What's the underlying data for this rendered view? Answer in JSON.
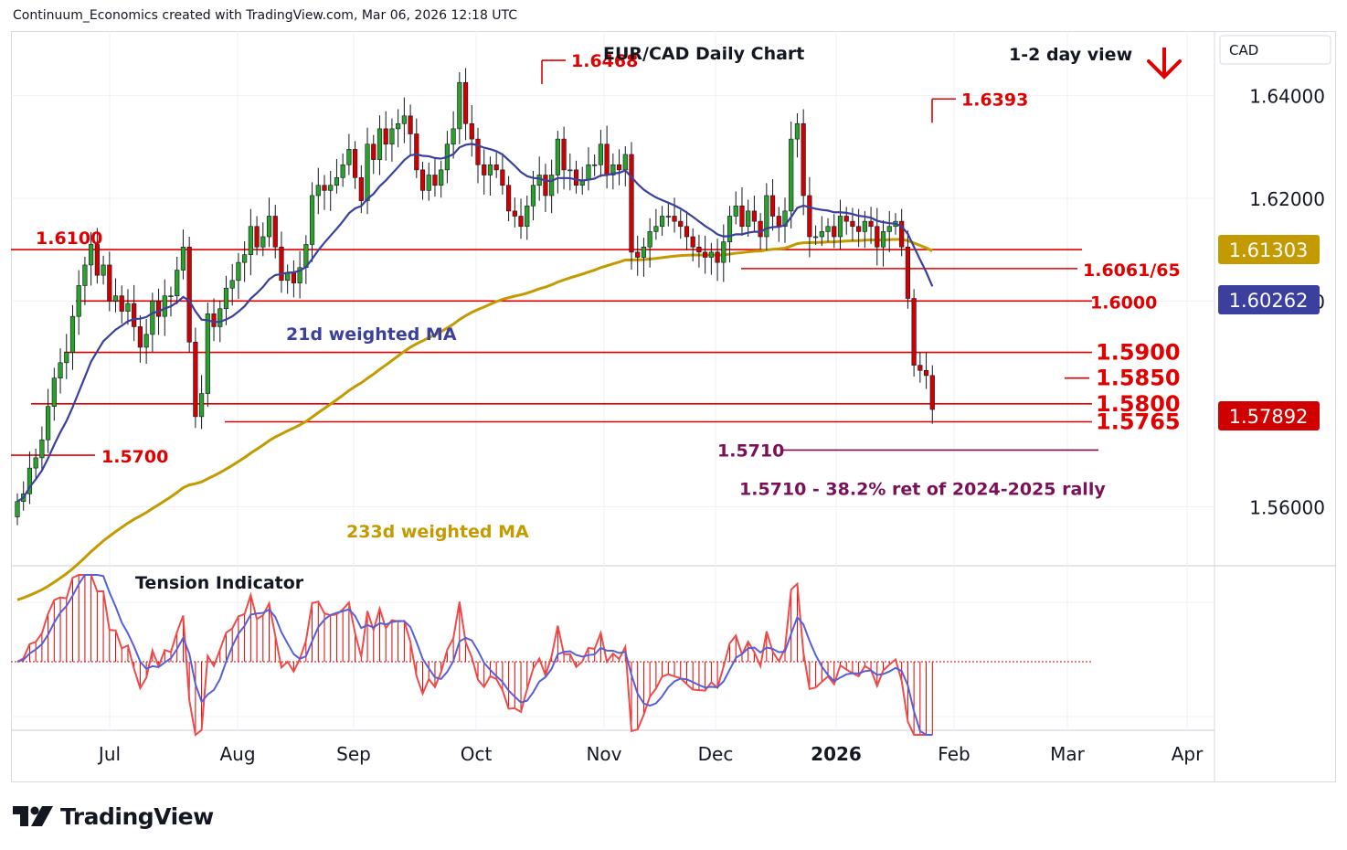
{
  "header": {
    "credit": "Continuum_Economics created with TradingView.com, Mar 06, 2026 12:18 UTC"
  },
  "branding": {
    "logo_text": "TradingView"
  },
  "colors": {
    "up": "#2ca02c",
    "down": "#d00000",
    "wick": "#131722",
    "level": "#e00000",
    "ma21": "#3b3f9e",
    "ma233": "#c39b00",
    "fib": "#7a1158",
    "tension_line": "#5560d8"
  },
  "chart_data": {
    "type": "candlestick",
    "title": "EUR/CAD Daily Chart",
    "view_label": "1-2 day view",
    "view_arrow": "down-arrow",
    "currency_label": "CAD",
    "ylim": [
      1.5485,
      1.6525
    ],
    "x_labels": [
      "Jul",
      "Aug",
      "Sep",
      "Oct",
      "Nov",
      "Dec",
      "2026",
      "Feb",
      "Mar",
      "Apr"
    ],
    "y_ticks": [
      "1.64000",
      "1.62000",
      "1.60000",
      "1.56000"
    ],
    "price_badges": [
      {
        "value": "1.61303",
        "color": "#c39b00"
      },
      {
        "value": "1.60262",
        "color": "#3b3f9e"
      },
      {
        "value": "1.57892",
        "color": "#d00000"
      }
    ],
    "levels": [
      {
        "label": "1.6100",
        "value": 1.61
      },
      {
        "label": "1.6061/65",
        "value": 1.6063
      },
      {
        "label": "1.6000",
        "value": 1.6
      },
      {
        "label": "1.5900",
        "value": 1.59
      },
      {
        "label": "1.5850",
        "value": 1.585
      },
      {
        "label": "1.5800",
        "value": 1.58
      },
      {
        "label": "1.5765",
        "value": 1.5765
      },
      {
        "label": "1.5700",
        "value": 1.57
      }
    ],
    "peaks": [
      {
        "label": "1.6468",
        "value": 1.6468
      },
      {
        "label": "1.6393",
        "value": 1.6393
      }
    ],
    "fib": {
      "label": "1.5710",
      "value": 1.571,
      "note": "1.5710 - 38.2% ret of 2024-2025 rally"
    },
    "ma_labels": {
      "ma21": "21d weighted MA",
      "ma233": "233d weighted MA"
    },
    "indicator_title": "Tension Indicator",
    "closes": [
      1.561,
      1.5625,
      1.5675,
      1.5695,
      1.573,
      1.5795,
      1.585,
      1.588,
      1.59,
      1.597,
      1.603,
      1.607,
      1.611,
      1.605,
      1.607,
      1.6,
      1.601,
      1.598,
      1.5995,
      1.595,
      1.591,
      1.5935,
      1.6,
      1.597,
      1.601,
      1.601,
      1.606,
      1.6105,
      1.592,
      1.5775,
      1.582,
      1.5975,
      1.595,
      1.5985,
      1.6025,
      1.604,
      1.6075,
      1.609,
      1.6145,
      1.6105,
      1.6125,
      1.6165,
      1.6105,
      1.604,
      1.6055,
      1.6035,
      1.6065,
      1.611,
      1.6205,
      1.6225,
      1.6215,
      1.6225,
      1.624,
      1.6265,
      1.6295,
      1.624,
      1.6195,
      1.6305,
      1.6275,
      1.6335,
      1.6305,
      1.6335,
      1.6345,
      1.636,
      1.6325,
      1.6255,
      1.6215,
      1.6245,
      1.6225,
      1.6255,
      1.6305,
      1.6335,
      1.6425,
      1.6345,
      1.6315,
      1.6265,
      1.6245,
      1.6265,
      1.6255,
      1.6225,
      1.6175,
      1.6165,
      1.6145,
      1.6185,
      1.6225,
      1.6245,
      1.6205,
      1.6245,
      1.6315,
      1.6255,
      1.6255,
      1.6225,
      1.6235,
      1.6265,
      1.6265,
      1.6305,
      1.6245,
      1.6265,
      1.6255,
      1.6285,
      1.6095,
      1.6085,
      1.6105,
      1.6135,
      1.6145,
      1.6165,
      1.6165,
      1.6155,
      1.6145,
      1.6125,
      1.6105,
      1.6095,
      1.6085,
      1.6095,
      1.6075,
      1.6115,
      1.6165,
      1.6185,
      1.6145,
      1.6175,
      1.6155,
      1.6125,
      1.6205,
      1.6165,
      1.6145,
      1.6175,
      1.6315,
      1.6345,
      1.6205,
      1.6125,
      1.6125,
      1.6135,
      1.6145,
      1.6125,
      1.6165,
      1.6155,
      1.6145,
      1.6135,
      1.6155,
      1.6145,
      1.6105,
      1.6135,
      1.6145,
      1.6155,
      1.6105,
      1.6005,
      1.5875,
      1.5865,
      1.5855,
      1.5789
    ]
  }
}
